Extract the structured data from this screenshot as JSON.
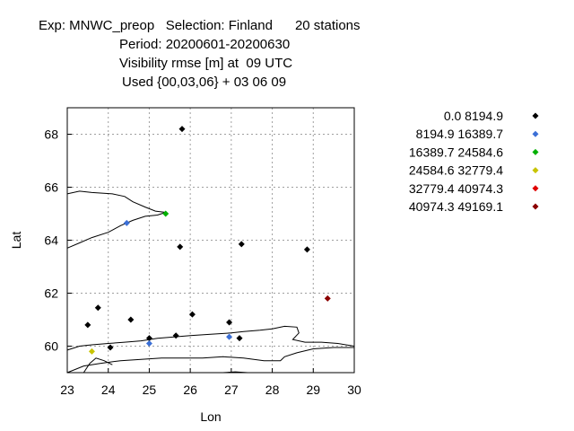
{
  "title": {
    "line1": "Exp: MNWC_preop   Selection: Finland      20 stations",
    "line2": "Period: 20200601-20200630",
    "line3": "Visibility rmse [m] at  09 UTC",
    "line4": "Used {00,03,06} + 03 06 09"
  },
  "chart_data": {
    "type": "scatter",
    "xlabel": "Lon",
    "ylabel": "Lat",
    "xlim": [
      23,
      30
    ],
    "ylim": [
      59,
      69
    ],
    "xticks": [
      "23",
      "24",
      "25",
      "26",
      "27",
      "28",
      "29",
      "30"
    ],
    "yticks": [
      "60",
      "62",
      "64",
      "66",
      "68"
    ],
    "grid": true,
    "legend_position": "right",
    "legend": [
      {
        "label": "0.0 8194.9",
        "color": "#000000"
      },
      {
        "label": "8194.9 16389.7",
        "color": "#3b6fd6"
      },
      {
        "label": "16389.7 24584.6",
        "color": "#00b000"
      },
      {
        "label": "24584.6 32779.4",
        "color": "#c8c400"
      },
      {
        "label": "32779.4 40974.3",
        "color": "#e00000"
      },
      {
        "label": "40974.3 49169.1",
        "color": "#8b0000"
      }
    ],
    "points": [
      {
        "lon": 25.8,
        "lat": 68.2,
        "cls": 0
      },
      {
        "lon": 24.45,
        "lat": 64.65,
        "cls": 1
      },
      {
        "lon": 25.4,
        "lat": 65.0,
        "cls": 2
      },
      {
        "lon": 25.75,
        "lat": 63.75,
        "cls": 0
      },
      {
        "lon": 27.25,
        "lat": 63.85,
        "cls": 0
      },
      {
        "lon": 28.85,
        "lat": 63.65,
        "cls": 0
      },
      {
        "lon": 29.35,
        "lat": 61.8,
        "cls": 5
      },
      {
        "lon": 23.75,
        "lat": 61.45,
        "cls": 0
      },
      {
        "lon": 24.55,
        "lat": 61.0,
        "cls": 0
      },
      {
        "lon": 23.5,
        "lat": 60.8,
        "cls": 0
      },
      {
        "lon": 26.05,
        "lat": 61.2,
        "cls": 0
      },
      {
        "lon": 26.95,
        "lat": 60.9,
        "cls": 0
      },
      {
        "lon": 24.05,
        "lat": 59.95,
        "cls": 0
      },
      {
        "lon": 25.0,
        "lat": 60.3,
        "cls": 0
      },
      {
        "lon": 25.0,
        "lat": 60.1,
        "cls": 1
      },
      {
        "lon": 25.65,
        "lat": 60.4,
        "cls": 0
      },
      {
        "lon": 26.95,
        "lat": 60.35,
        "cls": 1
      },
      {
        "lon": 27.2,
        "lat": 60.3,
        "cls": 0
      },
      {
        "lon": 23.6,
        "lat": 59.8,
        "cls": 3
      }
    ],
    "coastlines": [
      [
        [
          23,
          65.75
        ],
        [
          23.3,
          65.85
        ],
        [
          23.6,
          65.8
        ],
        [
          24.1,
          65.75
        ],
        [
          24.4,
          65.65
        ],
        [
          24.6,
          65.45
        ],
        [
          24.9,
          65.25
        ],
        [
          25.15,
          65.1
        ],
        [
          25.4,
          65.05
        ],
        [
          25.2,
          64.95
        ],
        [
          24.9,
          64.9
        ],
        [
          24.6,
          64.75
        ],
        [
          24.3,
          64.55
        ],
        [
          24.0,
          64.3
        ],
        [
          23.6,
          64.1
        ],
        [
          23.3,
          63.9
        ],
        [
          23,
          63.7
        ]
      ],
      [
        [
          23,
          59.85
        ],
        [
          23.3,
          60.0
        ],
        [
          23.6,
          60.05
        ],
        [
          24.0,
          60.1
        ],
        [
          24.4,
          60.15
        ],
        [
          24.8,
          60.2
        ],
        [
          25.2,
          60.3
        ],
        [
          25.6,
          60.35
        ],
        [
          26.0,
          60.4
        ],
        [
          26.5,
          60.45
        ],
        [
          27.0,
          60.5
        ],
        [
          27.3,
          60.55
        ],
        [
          27.7,
          60.6
        ],
        [
          28.0,
          60.65
        ],
        [
          28.3,
          60.75
        ],
        [
          28.6,
          60.72
        ],
        [
          28.65,
          60.5
        ],
        [
          28.5,
          60.25
        ],
        [
          28.8,
          60.15
        ],
        [
          29.2,
          60.15
        ],
        [
          29.6,
          60.1
        ],
        [
          30.0,
          60.0
        ]
      ],
      [
        [
          23,
          59.0
        ],
        [
          23.4,
          59.25
        ],
        [
          23.8,
          59.35
        ],
        [
          24.3,
          59.45
        ],
        [
          24.8,
          59.5
        ],
        [
          25.3,
          59.55
        ],
        [
          25.8,
          59.55
        ],
        [
          26.3,
          59.55
        ],
        [
          26.8,
          59.6
        ],
        [
          27.3,
          59.55
        ],
        [
          27.8,
          59.45
        ],
        [
          28.2,
          59.45
        ],
        [
          28.3,
          59.6
        ],
        [
          28.6,
          59.75
        ],
        [
          29.0,
          59.9
        ],
        [
          29.5,
          59.95
        ],
        [
          30.0,
          59.95
        ]
      ],
      [
        [
          23.4,
          59.0
        ],
        [
          23.55,
          59.35
        ],
        [
          23.7,
          59.55
        ],
        [
          23.9,
          59.45
        ],
        [
          24.1,
          59.3
        ]
      ],
      [
        [
          26.8,
          59.0
        ],
        [
          27.1,
          59.03
        ],
        [
          27.4,
          59.0
        ]
      ]
    ]
  }
}
